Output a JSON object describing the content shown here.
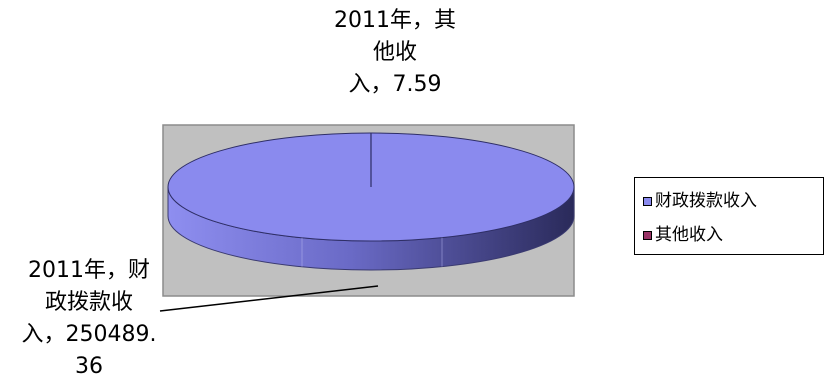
{
  "chart_data": {
    "type": "pie",
    "title": "",
    "slices": [
      {
        "name": "财政拨款收入",
        "value": 250489.36,
        "color": "#8A8AEE",
        "label": "2011年，财\n政拨款收\n入，250489.\n36"
      },
      {
        "name": "其他收入",
        "value": 7.59,
        "color": "#993366",
        "label": "2011年，其\n他收\n入，7.59"
      }
    ],
    "legend": {
      "position": "right",
      "entries": [
        "财政拨款收入",
        "其他收入"
      ]
    },
    "plot_background": "#C0C0C0",
    "style": "3d-pie"
  }
}
